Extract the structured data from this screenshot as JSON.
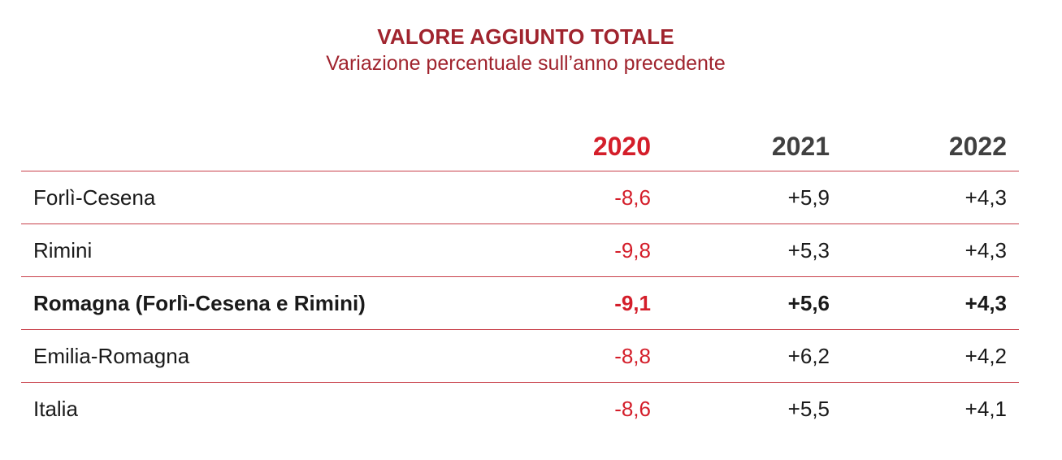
{
  "title": "VALORE AGGIUNTO TOTALE",
  "subtitle": "Variazione percentuale sull’anno precedente",
  "colors": {
    "title": "#a0242e",
    "accent_red": "#d41e2a",
    "row_divider": "#c8404a",
    "header_gray": "#404040"
  },
  "chart_data": {
    "type": "table",
    "title": "VALORE AGGIUNTO TOTALE",
    "subtitle": "Variazione percentuale sull’anno precedente",
    "columns": [
      "2020",
      "2021",
      "2022"
    ],
    "rows": [
      {
        "label": "Forlì-Cesena",
        "values": [
          "-8,6",
          "+5,9",
          "+4,3"
        ],
        "bold": false
      },
      {
        "label": "Rimini",
        "values": [
          "-9,8",
          "+5,3",
          "+4,3"
        ],
        "bold": false
      },
      {
        "label": "Romagna (Forlì-Cesena e Rimini)",
        "values": [
          "-9,1",
          "+5,6",
          "+4,3"
        ],
        "bold": true
      },
      {
        "label": "Emilia-Romagna",
        "values": [
          "-8,8",
          "+6,2",
          "+4,2"
        ],
        "bold": false
      },
      {
        "label": "Italia",
        "values": [
          "-8,6",
          "+5,5",
          "+4,1"
        ],
        "bold": false
      }
    ]
  }
}
